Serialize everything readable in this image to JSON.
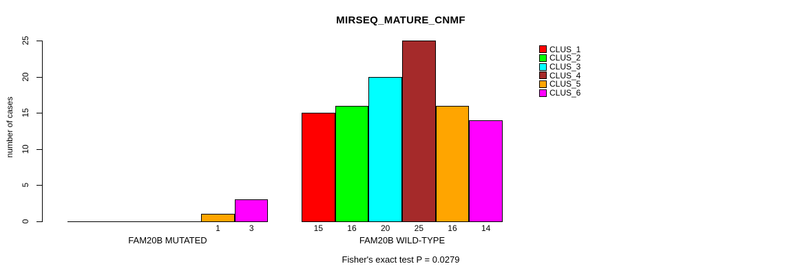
{
  "chart_data": {
    "type": "bar",
    "title": "MIRSEQ_MATURE_CNMF",
    "ylabel": "number of cases",
    "xlabel": "",
    "ylim": [
      0,
      25
    ],
    "yticks": [
      0,
      5,
      10,
      15,
      20,
      25
    ],
    "grid": false,
    "legend_position": "right-outside",
    "series_labels": [
      "CLUS_1",
      "CLUS_2",
      "CLUS_3",
      "CLUS_4",
      "CLUS_5",
      "CLUS_6"
    ],
    "series_colors": [
      "#FF0000",
      "#00FF00",
      "#00FFFF",
      "#A52A2A",
      "#FFA500",
      "#FF00FF"
    ],
    "groups": [
      {
        "label": "FAM20B MUTATED",
        "values": [
          0,
          0,
          0,
          0,
          1,
          3
        ]
      },
      {
        "label": "FAM20B WILD-TYPE",
        "values": [
          15,
          16,
          20,
          25,
          16,
          14
        ]
      }
    ],
    "annotation": "Fisher's exact test P = 0.0279"
  }
}
